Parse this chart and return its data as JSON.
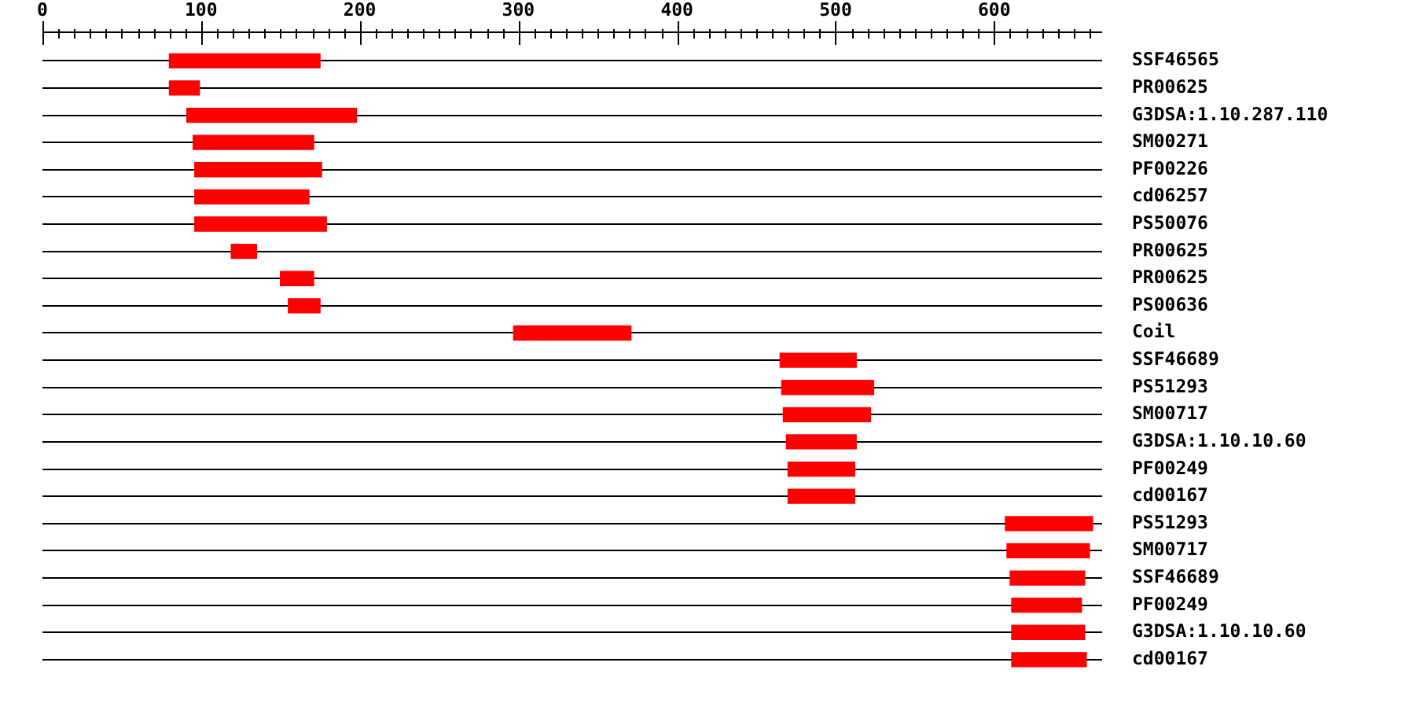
{
  "chart_data": {
    "type": "bar",
    "orientation": "horizontal",
    "categories": [
      "SSF46565",
      "PR00625",
      "G3DSA:1.10.287.110",
      "SM00271",
      "PF00226",
      "cd06257",
      "PS50076",
      "PR00625",
      "PR00625",
      "PS00636",
      "Coil",
      "SSF46689",
      "PS51293",
      "SM00717",
      "G3DSA:1.10.10.60",
      "PF00249",
      "cd00167",
      "PS51293",
      "SM00717",
      "SSF46689",
      "PF00249",
      "G3DSA:1.10.10.60",
      "cd00167"
    ],
    "base": [
      80,
      80,
      91,
      95,
      96,
      96,
      96,
      119,
      150,
      155,
      297,
      465,
      466,
      467,
      469,
      470,
      470,
      607,
      608,
      610,
      611,
      611,
      611
    ],
    "values": [
      95,
      19,
      107,
      76,
      80,
      72,
      83,
      16,
      21,
      20,
      74,
      48,
      58,
      55,
      44,
      42,
      42,
      55,
      52,
      47,
      44,
      46,
      47
    ],
    "color": "#ff0000",
    "xlim": [
      0,
      668
    ],
    "xticks": [
      0,
      {
        "value": 10,
        "label": null
      },
      {
        "value": 20,
        "label": null
      },
      {
        "value": 30,
        "label": null
      },
      {
        "value": 40,
        "label": null
      },
      {
        "value": 50,
        "label": null
      },
      {
        "value": 60,
        "label": null
      },
      {
        "value": 70,
        "label": null
      },
      {
        "value": 80,
        "label": null
      },
      {
        "value": 90,
        "label": null
      },
      100,
      {
        "value": 110,
        "label": null
      },
      {
        "value": 120,
        "label": null
      },
      {
        "value": 130,
        "label": null
      },
      {
        "value": 140,
        "label": null
      },
      {
        "value": 150,
        "label": null
      },
      {
        "value": 160,
        "label": null
      },
      {
        "value": 170,
        "label": null
      },
      {
        "value": 180,
        "label": null
      },
      {
        "value": 190,
        "label": null
      },
      200,
      {
        "value": 210,
        "label": null
      },
      {
        "value": 220,
        "label": null
      },
      {
        "value": 230,
        "label": null
      },
      {
        "value": 240,
        "label": null
      },
      {
        "value": 250,
        "label": null
      },
      {
        "value": 260,
        "label": null
      },
      {
        "value": 270,
        "label": null
      },
      {
        "value": 280,
        "label": null
      },
      {
        "value": 290,
        "label": null
      },
      300,
      {
        "value": 310,
        "label": null
      },
      {
        "value": 320,
        "label": null
      },
      {
        "value": 330,
        "label": null
      },
      {
        "value": 340,
        "label": null
      },
      {
        "value": 350,
        "label": null
      },
      {
        "value": 360,
        "label": null
      },
      {
        "value": 370,
        "label": null
      },
      {
        "value": 380,
        "label": null
      },
      {
        "value": 390,
        "label": null
      },
      400,
      {
        "value": 410,
        "label": null
      },
      {
        "value": 420,
        "label": null
      },
      {
        "value": 430,
        "label": null
      },
      {
        "value": 440,
        "label": null
      },
      {
        "value": 450,
        "label": null
      },
      {
        "value": 460,
        "label": null
      },
      {
        "value": 470,
        "label": null
      },
      {
        "value": 480,
        "label": null
      },
      {
        "value": 490,
        "label": null
      },
      500,
      {
        "value": 510,
        "label": null
      },
      {
        "value": 520,
        "label": null
      },
      {
        "value": 530,
        "label": null
      },
      {
        "value": 540,
        "label": null
      },
      {
        "value": 550,
        "label": null
      },
      {
        "value": 560,
        "label": null
      },
      {
        "value": 570,
        "label": null
      },
      {
        "value": 580,
        "label": null
      },
      {
        "value": 590,
        "label": null
      },
      600,
      {
        "value": 610,
        "label": null
      },
      {
        "value": 620,
        "label": null
      },
      {
        "value": 630,
        "label": null
      },
      {
        "value": 640,
        "label": null
      },
      {
        "value": 650,
        "label": null
      },
      {
        "value": 660,
        "label": null
      }
    ],
    "grid": "y"
  }
}
